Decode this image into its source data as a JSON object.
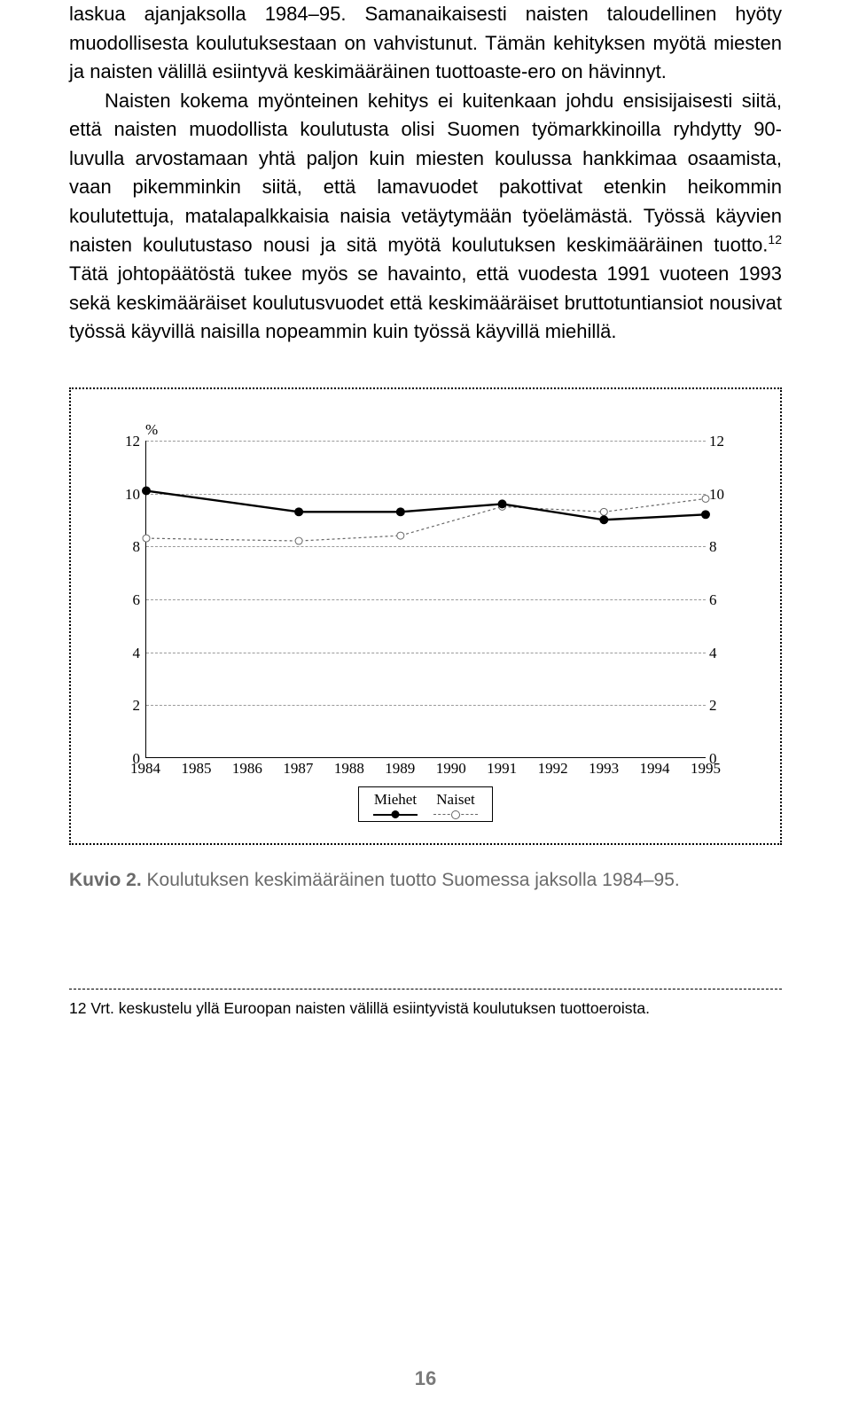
{
  "text": {
    "para1": "laskua ajanjaksolla 1984–95. Samanaikaisesti naisten taloudellinen hyöty muodollisesta koulutuksestaan on vahvistunut. Tämän kehityksen myötä miesten ja naisten välillä esiintyvä keskimääräinen tuottoaste-ero on hävinnyt.",
    "para2a": "Naisten kokema myönteinen kehitys ei kuitenkaan johdu ensisijaisesti siitä, että naisten muodollista koulutusta olisi Suomen työmarkkinoilla ryhdytty 90-luvulla arvostamaan yhtä paljon kuin miesten koulussa hankkimaa osaamista, vaan pikemminkin siitä, että lamavuodet pakottivat etenkin heikommin koulutettuja, matalapalkkaisia naisia vetäytymään työelämästä. Työssä käyvien naisten koulutustaso nousi ja sitä myötä koulutuksen keskimääräinen tuotto.",
    "para2b": " Tätä johtopäätöstä tukee myös se havainto, että vuodesta 1991 vuoteen 1993 sekä keskimääräiset koulutusvuodet että keskimääräiset bruttotuntiansiot nousivat työssä käyvillä naisilla nopeammin kuin työssä käyvillä miehillä.",
    "sup": "12"
  },
  "chart": {
    "y_unit": "%",
    "y_ticks": [
      0,
      2,
      4,
      6,
      8,
      10,
      12
    ],
    "x_labels": [
      "1984",
      "1985",
      "1986",
      "1987",
      "1988",
      "1989",
      "1990",
      "1991",
      "1992",
      "1993",
      "1994",
      "1995"
    ],
    "series": {
      "miehet": {
        "label": "Miehet",
        "color": "#000000",
        "values": [
          10.1,
          null,
          null,
          9.3,
          null,
          9.3,
          null,
          9.6,
          null,
          9.0,
          null,
          9.2
        ]
      },
      "naiset": {
        "label": "Naiset",
        "color": "#666666",
        "values": [
          8.3,
          null,
          null,
          8.2,
          null,
          8.4,
          null,
          9.5,
          null,
          9.3,
          null,
          9.8
        ]
      }
    },
    "ylim": [
      0,
      12
    ]
  },
  "caption": {
    "label": "Kuvio 2.",
    "text": "  Koulutuksen keskimääräinen tuotto Suomessa jaksolla 1984–95."
  },
  "footnote": {
    "num": "12",
    "text": " Vrt. keskustelu yllä Euroopan naisten välillä esiintyvistä koulutuksen tuottoeroista."
  },
  "page_number": "16"
}
